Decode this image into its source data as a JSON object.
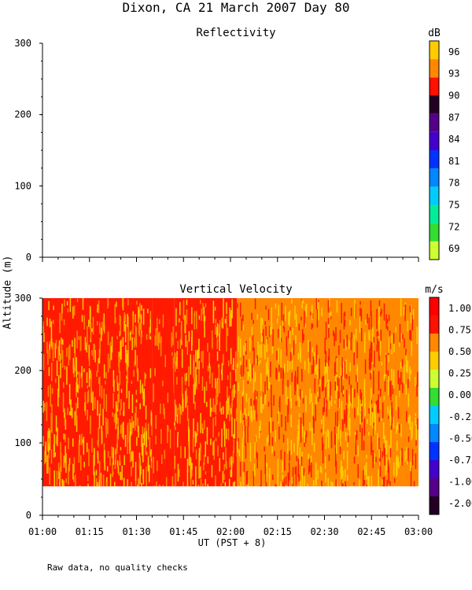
{
  "title": "Dixon, CA 21 March 2007  Day  80",
  "footer": "Raw data, no quality checks",
  "chart_data": [
    {
      "type": "heatmap",
      "title": "Reflectivity",
      "xlabel": "UT  (PST + 8)",
      "ylabel": "Altitude (m)",
      "x_ticks": [
        "01:00",
        "01:15",
        "01:30",
        "01:45",
        "02:00",
        "02:15",
        "02:30",
        "02:45",
        "03:00"
      ],
      "xlim": [
        "01:00",
        "03:00"
      ],
      "ylim": [
        0,
        300
      ],
      "y_ticks": [
        0,
        100,
        200,
        300
      ],
      "colorbar": {
        "unit": "dB",
        "ticks": [
          69,
          72,
          75,
          78,
          81,
          84,
          87,
          90,
          93,
          96
        ],
        "colors": [
          "#ccff33",
          "#33dd33",
          "#00ee99",
          "#00ccff",
          "#0088ff",
          "#0033ff",
          "#4400cc",
          "#550088",
          "#220022",
          "#ff1100",
          "#ff8800",
          "#ffcc00"
        ]
      },
      "values": []
    },
    {
      "type": "heatmap",
      "title": "Vertical Velocity",
      "xlabel": "UT  (PST + 8)",
      "ylabel": "Altitude (m)",
      "x_ticks": [
        "01:00",
        "01:15",
        "01:30",
        "01:45",
        "02:00",
        "02:15",
        "02:30",
        "02:45",
        "03:00"
      ],
      "xlim": [
        "01:00",
        "03:00"
      ],
      "ylim": [
        0,
        300
      ],
      "y_ticks": [
        0,
        100,
        200,
        300
      ],
      "data_altitude_range": [
        40,
        300
      ],
      "colorbar": {
        "unit": "m/s",
        "ticks": [
          -2.0,
          -1.0,
          -0.75,
          -0.5,
          -0.25,
          0.0,
          0.25,
          0.5,
          0.75,
          1.0
        ],
        "tick_labels": [
          "-2.00",
          "-1.00",
          "-0.75",
          "-0.50",
          "-0.25",
          "0.00",
          "0.25",
          "0.50",
          "0.75",
          "1.00"
        ],
        "colors": [
          "#220022",
          "#550088",
          "#4400cc",
          "#0033ff",
          "#0088ff",
          "#00ccff",
          "#33dd33",
          "#ccff33",
          "#ffcc00",
          "#ff8800",
          "#ff1100",
          "#ff0000"
        ]
      },
      "pattern": [
        {
          "x_range": [
            "01:00",
            "01:35"
          ],
          "dominant": 1.0,
          "mix": [
            1.0,
            0.75,
            0.5
          ]
        },
        {
          "x_range": [
            "01:35",
            "01:42"
          ],
          "dominant": 1.0,
          "mix": [
            1.0,
            1.0,
            0.75
          ]
        },
        {
          "x_range": [
            "01:42",
            "02:02"
          ],
          "dominant": 1.0,
          "mix": [
            1.0,
            0.75,
            0.5
          ]
        },
        {
          "x_range": [
            "02:02",
            "03:00"
          ],
          "dominant": 0.75,
          "mix": [
            0.75,
            0.5,
            1.0
          ]
        }
      ]
    }
  ]
}
